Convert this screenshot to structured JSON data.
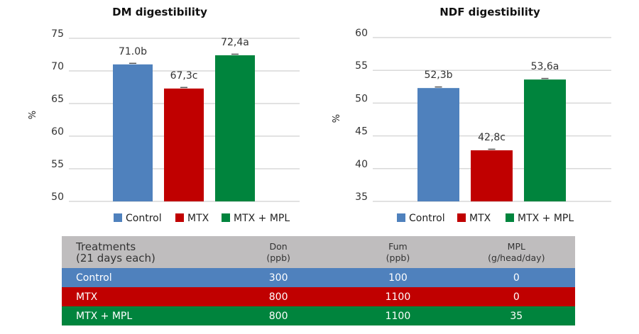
{
  "colors": {
    "control": "#4f81bd",
    "mtx": "#c00000",
    "mtx_mpl": "#00843d",
    "table_header": "#bfbdbe",
    "grid": "#d9d9d9"
  },
  "chart_data": [
    {
      "type": "bar",
      "title": "DM digestibility",
      "xlabel": "",
      "ylabel": "%",
      "categories": [
        "Control",
        "MTX",
        "MTX + MPL"
      ],
      "values": [
        71.0,
        67.3,
        72.4
      ],
      "data_labels": [
        "71.0b",
        "67,3c",
        "72,4a"
      ],
      "colors": [
        "#4f81bd",
        "#c00000",
        "#00843d"
      ],
      "ylim": [
        50,
        75
      ],
      "yticks": [
        50,
        55,
        60,
        65,
        70,
        75
      ],
      "grid": true,
      "error_bars": true,
      "legend": {
        "position": "bottom",
        "entries": [
          "Control",
          "MTX",
          "MTX + MPL"
        ]
      }
    },
    {
      "type": "bar",
      "title": "NDF digestibility",
      "xlabel": "",
      "ylabel": "%",
      "categories": [
        "Control",
        "MTX",
        "MTX + MPL"
      ],
      "values": [
        52.3,
        42.8,
        53.6
      ],
      "data_labels": [
        "52,3b",
        "42,8c",
        "53,6a"
      ],
      "colors": [
        "#4f81bd",
        "#c00000",
        "#00843d"
      ],
      "ylim": [
        35,
        60
      ],
      "yticks": [
        35,
        40,
        45,
        50,
        55,
        60
      ],
      "grid": true,
      "error_bars": true,
      "legend": {
        "position": "bottom",
        "entries": [
          "Control",
          "MTX",
          "MTX + MPL"
        ]
      }
    }
  ],
  "table": {
    "headers": [
      [
        "Treatments",
        "(21 days each)"
      ],
      [
        "Don",
        "(ppb)"
      ],
      [
        "Fum",
        "(ppb)"
      ],
      [
        "MPL",
        "(g/head/day)"
      ]
    ],
    "rows": [
      {
        "cells": [
          "Control",
          "300",
          "100",
          "0"
        ],
        "color": "#4f81bd"
      },
      {
        "cells": [
          "MTX",
          "800",
          "1100",
          "0"
        ],
        "color": "#c00000"
      },
      {
        "cells": [
          "MTX + MPL",
          "800",
          "1100",
          "35"
        ],
        "color": "#00843d"
      }
    ]
  }
}
